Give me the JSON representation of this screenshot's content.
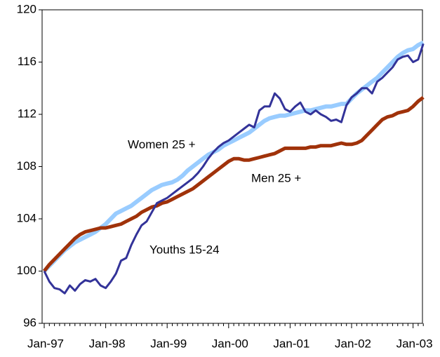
{
  "chart_data": {
    "type": "line",
    "categories": [
      "Jan-97",
      null,
      null,
      null,
      null,
      null,
      null,
      null,
      null,
      null,
      null,
      null,
      "Jan-98",
      null,
      null,
      null,
      null,
      null,
      null,
      null,
      null,
      null,
      null,
      null,
      "Jan-99",
      null,
      null,
      null,
      null,
      null,
      null,
      null,
      null,
      null,
      null,
      null,
      "Jan-00",
      null,
      null,
      null,
      null,
      null,
      null,
      null,
      null,
      null,
      null,
      null,
      "Jan-01",
      null,
      null,
      null,
      null,
      null,
      null,
      null,
      null,
      null,
      null,
      null,
      "Jan-02",
      null,
      null,
      null,
      null,
      null,
      null,
      null,
      null,
      null,
      null,
      null,
      "Jan-03",
      null,
      null
    ],
    "series": [
      {
        "name": "Women 25 +",
        "color": "#99ccff",
        "values": [
          100.0,
          100.4,
          100.8,
          101.2,
          101.6,
          101.9,
          102.2,
          102.4,
          102.6,
          102.8,
          103.0,
          103.3,
          103.6,
          104.0,
          104.4,
          104.6,
          104.8,
          105.0,
          105.3,
          105.6,
          105.9,
          106.2,
          106.4,
          106.6,
          106.7,
          106.8,
          107.0,
          107.3,
          107.7,
          108.0,
          108.3,
          108.6,
          108.9,
          109.1,
          109.3,
          109.6,
          109.8,
          110.0,
          110.2,
          110.4,
          110.6,
          110.9,
          111.2,
          111.5,
          111.7,
          111.8,
          111.9,
          111.9,
          112.0,
          112.1,
          112.2,
          112.3,
          112.3,
          112.4,
          112.5,
          112.6,
          112.6,
          112.7,
          112.8,
          112.8,
          113.2,
          113.6,
          113.9,
          114.2,
          114.5,
          114.8,
          115.2,
          115.6,
          116.0,
          116.4,
          116.7,
          116.9,
          117.0,
          117.3,
          117.5
        ]
      },
      {
        "name": "Men 25 +",
        "color": "#a0320a",
        "values": [
          100.0,
          100.5,
          100.9,
          101.3,
          101.7,
          102.1,
          102.5,
          102.8,
          103.0,
          103.1,
          103.2,
          103.3,
          103.3,
          103.4,
          103.5,
          103.6,
          103.8,
          104.0,
          104.2,
          104.5,
          104.7,
          104.9,
          105.0,
          105.2,
          105.3,
          105.5,
          105.7,
          105.9,
          106.1,
          106.3,
          106.6,
          106.9,
          107.2,
          107.5,
          107.8,
          108.1,
          108.4,
          108.6,
          108.6,
          108.5,
          108.5,
          108.6,
          108.7,
          108.8,
          108.9,
          109.0,
          109.2,
          109.4,
          109.4,
          109.4,
          109.4,
          109.4,
          109.5,
          109.5,
          109.6,
          109.6,
          109.6,
          109.7,
          109.8,
          109.7,
          109.7,
          109.8,
          110.0,
          110.4,
          110.8,
          111.2,
          111.6,
          111.8,
          111.9,
          112.1,
          112.2,
          112.3,
          112.6,
          113.0,
          113.3
        ]
      },
      {
        "name": "Youths 15-24",
        "color": "#333399",
        "values": [
          100.0,
          99.2,
          98.7,
          98.6,
          98.3,
          98.9,
          98.5,
          99.0,
          99.3,
          99.2,
          99.4,
          98.9,
          98.7,
          99.2,
          99.8,
          100.8,
          101.0,
          102.0,
          102.8,
          103.5,
          103.8,
          104.5,
          105.2,
          105.4,
          105.6,
          105.9,
          106.2,
          106.5,
          106.8,
          107.1,
          107.5,
          108.0,
          108.6,
          109.1,
          109.5,
          109.8,
          110.0,
          110.3,
          110.6,
          110.9,
          111.2,
          111.0,
          112.3,
          112.6,
          112.6,
          113.6,
          113.2,
          112.4,
          112.2,
          112.6,
          112.9,
          112.2,
          112.0,
          112.3,
          112.0,
          111.8,
          111.5,
          111.6,
          111.4,
          112.7,
          113.3,
          113.6,
          114.0,
          114.0,
          113.6,
          114.5,
          114.8,
          115.2,
          115.6,
          116.2,
          116.4,
          116.5,
          116.0,
          116.2,
          117.4
        ]
      }
    ],
    "ylim": [
      96,
      120
    ],
    "yticks": [
      96,
      100,
      104,
      108,
      112,
      116,
      120
    ]
  }
}
